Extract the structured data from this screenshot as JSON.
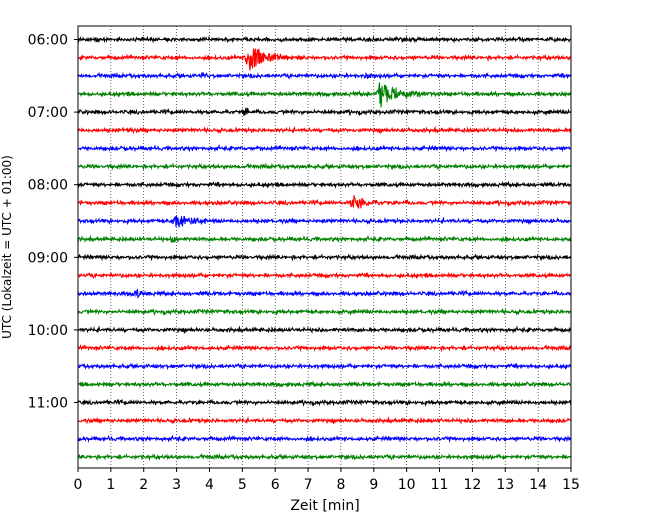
{
  "chart_data": {
    "type": "line",
    "title": "",
    "xlabel": "Zeit  [min]",
    "ylabel": "UTC (Lokalzeit = UTC + 01:00)",
    "xlim": [
      0,
      15
    ],
    "x_ticks": [
      0,
      1,
      2,
      3,
      4,
      5,
      6,
      7,
      8,
      9,
      10,
      11,
      12,
      13,
      14,
      15
    ],
    "y_ticks": [
      "06:00",
      "07:00",
      "08:00",
      "09:00",
      "10:00",
      "11:00"
    ],
    "start_time": "06:00",
    "end_time": "12:00",
    "row_minutes": 15,
    "grid": {
      "x": "dotted",
      "y": false
    },
    "color_cycle": [
      "#000000",
      "#ff0000",
      "#0000ff",
      "#008000"
    ],
    "events": [
      {
        "row_start": "06:15",
        "minute": 5.2,
        "amplitude": 1.8,
        "duration_min": 1.4
      },
      {
        "row_start": "06:30",
        "minute": 3.8,
        "amplitude": 0.5,
        "duration_min": 0.3
      },
      {
        "row_start": "06:30",
        "minute": 8.8,
        "amplitude": 0.35,
        "duration_min": 0.3
      },
      {
        "row_start": "06:45",
        "minute": 9.2,
        "amplitude": 1.6,
        "duration_min": 1.6
      },
      {
        "row_start": "07:00",
        "minute": 5.1,
        "amplitude": 0.7,
        "duration_min": 0.3
      },
      {
        "row_start": "07:15",
        "minute": 1.5,
        "amplitude": 0.4,
        "duration_min": 0.2
      },
      {
        "row_start": "07:30",
        "minute": 5.6,
        "amplitude": 0.4,
        "duration_min": 0.2
      },
      {
        "row_start": "08:15",
        "minute": 8.4,
        "amplitude": 0.9,
        "duration_min": 0.9
      },
      {
        "row_start": "08:30",
        "minute": 3.0,
        "amplitude": 0.9,
        "duration_min": 1.3
      },
      {
        "row_start": "08:45",
        "minute": 2.9,
        "amplitude": 0.5,
        "duration_min": 0.3
      },
      {
        "row_start": "09:30",
        "minute": 1.8,
        "amplitude": 0.5,
        "duration_min": 0.4
      }
    ]
  }
}
